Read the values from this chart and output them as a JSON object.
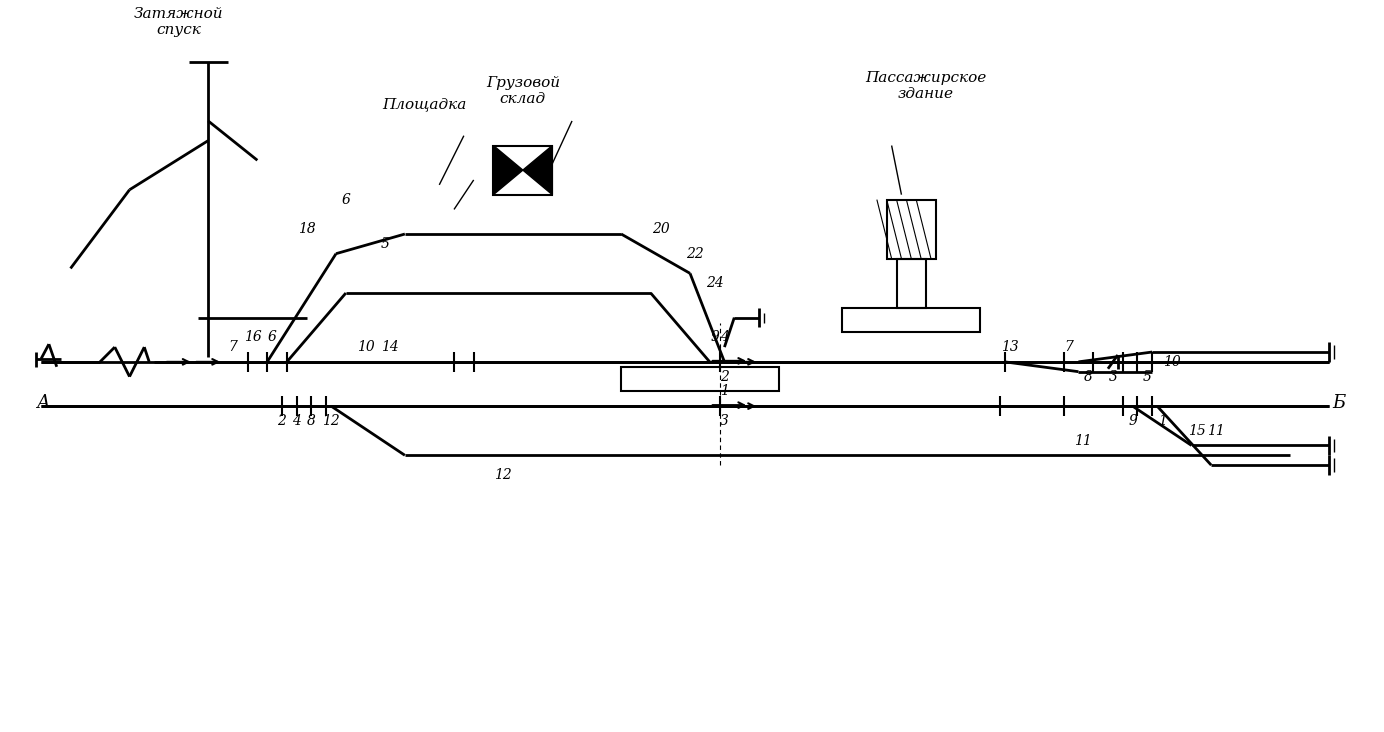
{
  "bg_color": "#ffffff",
  "line_color": "#000000",
  "fig_width": 13.84,
  "fig_height": 7.32,
  "title_zatyazhnoy": "Затяжной\nспуск",
  "title_ploshchadka": "Площадка",
  "title_gruzovoy": "Грузовой\nсклад",
  "title_passazhirskoe": "Пассажирское\nздание",
  "label_A": "А",
  "label_B": "Б"
}
